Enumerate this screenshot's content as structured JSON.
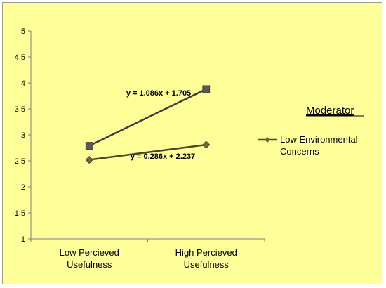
{
  "chart_data": {
    "type": "line",
    "categories": [
      "Low Percieved Usefulness",
      "High Percieved Usefulness"
    ],
    "category_label_lines": [
      [
        "Low Percieved",
        "Usefulness"
      ],
      [
        "High Percieved",
        "Usefulness"
      ]
    ],
    "ylim": [
      1,
      5
    ],
    "yticks": [
      1,
      1.5,
      2,
      2.5,
      3,
      3.5,
      4,
      4.5,
      5
    ],
    "ytick_labels": [
      "1",
      "1.5",
      "2",
      "2.5",
      "3",
      "3.5",
      "4",
      "4.5",
      "5"
    ],
    "grid": false,
    "series": [
      {
        "values": [
          2.79,
          3.88
        ],
        "marker": "square",
        "color": "#3b3b3b",
        "marker_color": "#595959",
        "trendline_label": "y = 1.086x + 1.705"
      },
      {
        "name": "Low Environmental Concerns",
        "name_lines": [
          "Low Environmental",
          "Concerns"
        ],
        "values": [
          2.52,
          2.81
        ],
        "marker": "diamond",
        "color": "#4a4a28",
        "marker_color": "#6b6b3a",
        "trendline_label": "y = 0.286x + 2.237"
      }
    ],
    "legend": {
      "title": "Moderator",
      "placement": "right"
    }
  }
}
